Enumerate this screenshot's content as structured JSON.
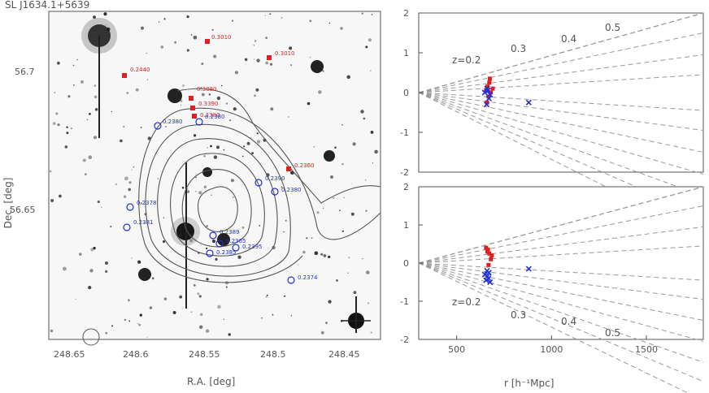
{
  "figure_title": "SL J1634.1+5639",
  "sky_panel": {
    "xlabel": "R.A. [deg]",
    "ylabel": "Dec. [deg]",
    "x_ticks": [
      "248.65",
      "248.6",
      "248.55",
      "248.5",
      "248.45"
    ],
    "y_ticks": [
      "56.7",
      "56.65"
    ],
    "red_labels": [
      "0.3010",
      "0.3010",
      "0.2440",
      "0.3080",
      "0.3390",
      "0.2380",
      "0.2360"
    ],
    "blue_labels": [
      "0.2380",
      "0.2390",
      "0.2380",
      "0.2378",
      "0.2381",
      "0.2389",
      "0.2365",
      "0.2385",
      "0.2395",
      "0.2374",
      "0.2380"
    ]
  },
  "chart_data": [
    {
      "type": "scatter",
      "name": "top-right",
      "xlabel": "",
      "ylabel": "",
      "xlim": [
        300,
        1800
      ],
      "ylim": [
        -2,
        2
      ],
      "y_ticks": [
        "-2",
        "-1",
        "0",
        "1",
        "2"
      ],
      "y_tick_values": [
        -2,
        -1,
        0,
        1,
        2
      ],
      "redshift_lines": [
        "z=0.2",
        "0.3",
        "0.4",
        "0.5"
      ],
      "series": [
        {
          "color": "#e02020",
          "points": [
            [
              655,
              0.05
            ],
            [
              662,
              0.15
            ],
            [
              668,
              -0.1
            ],
            [
              672,
              0.25
            ],
            [
              680,
              0.0
            ],
            [
              675,
              0.35
            ],
            [
              660,
              -0.25
            ],
            [
              690,
              0.1
            ]
          ]
        },
        {
          "color": "#2030d0",
          "points": [
            [
              648,
              0.0
            ],
            [
              658,
              -0.3
            ],
            [
              665,
              0.05
            ],
            [
              670,
              -0.15
            ],
            [
              660,
              0.1
            ],
            [
              676,
              -0.05
            ],
            [
              880,
              -0.25
            ]
          ]
        }
      ]
    },
    {
      "type": "scatter",
      "name": "bottom-right",
      "xlabel": "r [h⁻¹Mpc]",
      "ylabel": "",
      "xlim": [
        300,
        1800
      ],
      "ylim": [
        -2,
        2
      ],
      "x_ticks": [
        "500",
        "1000",
        "1500"
      ],
      "x_tick_values": [
        500,
        1000,
        1500
      ],
      "y_ticks": [
        "-2",
        "-1",
        "0",
        "1",
        "2"
      ],
      "y_tick_values": [
        -2,
        -1,
        0,
        1,
        2
      ],
      "redshift_lines": [
        "z=0.2",
        "0.3",
        "0.4",
        "0.5"
      ],
      "series": [
        {
          "color": "#e02020",
          "points": [
            [
              655,
              0.4
            ],
            [
              665,
              0.35
            ],
            [
              672,
              0.25
            ],
            [
              680,
              0.1
            ],
            [
              668,
              -0.05
            ],
            [
              662,
              0.3
            ],
            [
              685,
              0.2
            ]
          ]
        },
        {
          "color": "#2030d0",
          "points": [
            [
              648,
              -0.3
            ],
            [
              655,
              -0.45
            ],
            [
              662,
              -0.35
            ],
            [
              670,
              -0.25
            ],
            [
              676,
              -0.5
            ],
            [
              660,
              -0.2
            ],
            [
              668,
              -0.4
            ],
            [
              880,
              -0.15
            ]
          ]
        }
      ]
    }
  ]
}
